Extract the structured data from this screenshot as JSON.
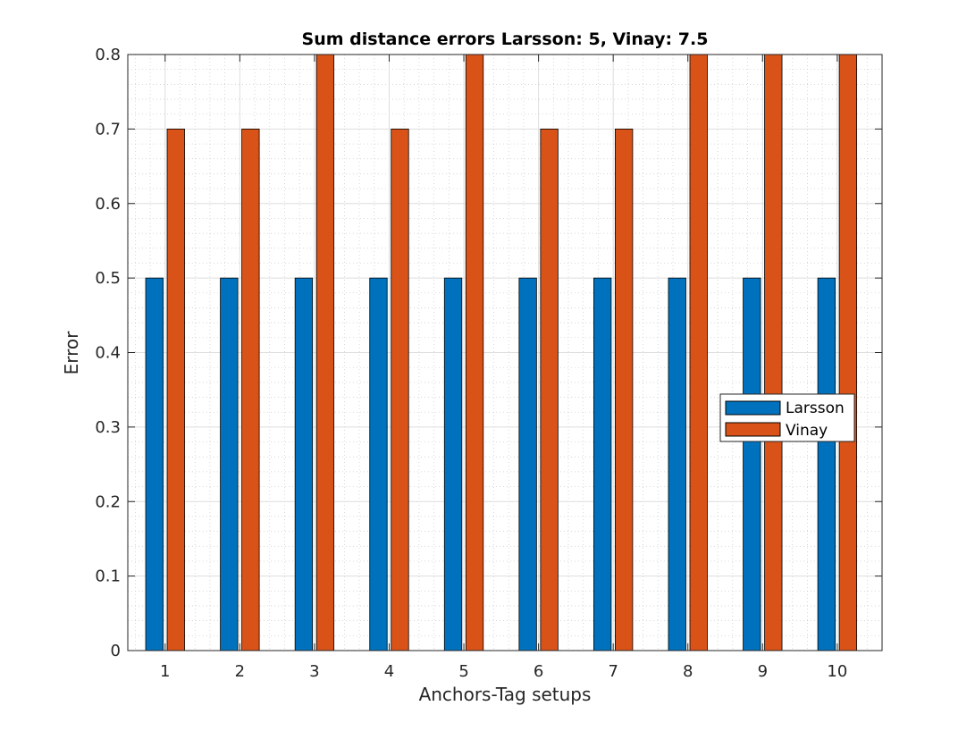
{
  "chart_data": {
    "type": "bar",
    "title": "Sum distance errors Larsson: 5, Vinay: 7.5",
    "xlabel": "Anchors-Tag setups",
    "ylabel": "Error",
    "categories": [
      "1",
      "2",
      "3",
      "4",
      "5",
      "6",
      "7",
      "8",
      "9",
      "10"
    ],
    "series": [
      {
        "name": "Larsson",
        "color": "#0072BD",
        "values": [
          0.5,
          0.5,
          0.5,
          0.5,
          0.5,
          0.5,
          0.5,
          0.5,
          0.5,
          0.5
        ]
      },
      {
        "name": "Vinay",
        "color": "#D95319",
        "values": [
          0.7,
          0.7,
          0.8,
          0.7,
          0.8,
          0.7,
          0.7,
          0.8,
          0.8,
          0.8
        ]
      }
    ],
    "ylim": [
      0,
      0.8
    ],
    "yticks": [
      "0",
      "0.1",
      "0.2",
      "0.3",
      "0.4",
      "0.5",
      "0.6",
      "0.7",
      "0.8"
    ],
    "grid": true,
    "minor_grid": true,
    "legend_position": "east"
  }
}
